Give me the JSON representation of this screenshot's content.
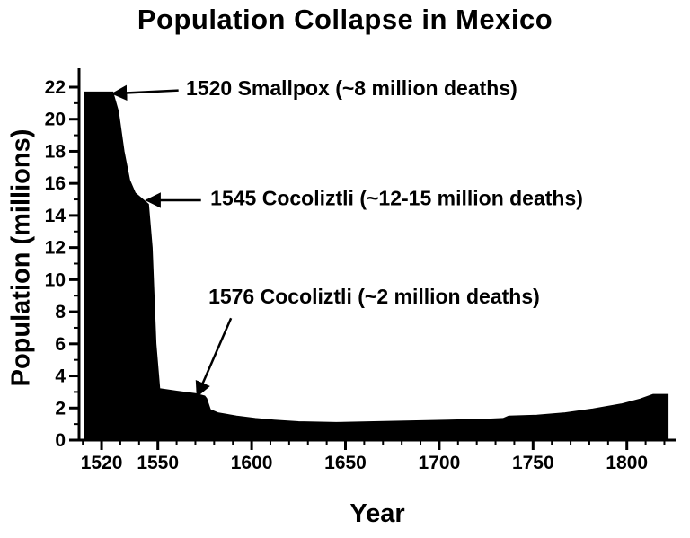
{
  "title": "Population Collapse in Mexico",
  "chart_data": {
    "type": "area",
    "title": "Population Collapse in Mexico",
    "xlabel": "Year",
    "ylabel": "Population (millions)",
    "xlim": [
      1508,
      1826
    ],
    "ylim": [
      0,
      22
    ],
    "grid": false,
    "legend": "none",
    "fill_color": "#000000",
    "axis_color": "#000000",
    "xticks_major": [
      1520,
      1550,
      1600,
      1650,
      1700,
      1750,
      1800
    ],
    "xtick_minor_step": 10,
    "yticks_major": [
      0,
      2,
      4,
      6,
      8,
      10,
      12,
      14,
      16,
      18,
      20,
      22
    ],
    "ytick_minor_step": 1,
    "x": [
      1511,
      1526,
      1529,
      1532,
      1535,
      1538,
      1542,
      1545,
      1547,
      1549,
      1551,
      1560,
      1570,
      1575,
      1576,
      1578,
      1582,
      1592,
      1602,
      1612,
      1625,
      1645,
      1665,
      1685,
      1705,
      1725,
      1734,
      1737,
      1752,
      1767,
      1782,
      1797,
      1807,
      1814,
      1822
    ],
    "y": [
      21.7,
      21.7,
      20.5,
      18.0,
      16.2,
      15.4,
      15.0,
      14.7,
      12.0,
      6.0,
      3.2,
      3.05,
      2.9,
      2.75,
      2.6,
      1.9,
      1.7,
      1.5,
      1.35,
      1.25,
      1.15,
      1.1,
      1.15,
      1.2,
      1.25,
      1.3,
      1.35,
      1.5,
      1.55,
      1.7,
      1.95,
      2.25,
      2.55,
      2.85,
      2.85
    ],
    "annotations": [
      {
        "text": "1520  Smallpox (~8 million deaths)",
        "text_pos": {
          "year": 1565,
          "value": 21.5
        },
        "tail": {
          "year": 1561,
          "value": 21.8
        },
        "target": {
          "year": 1526,
          "value": 21.6
        }
      },
      {
        "text": "1545  Cocoliztli (~12-15 million deaths)",
        "text_pos": {
          "year": 1578,
          "value": 14.65
        },
        "tail": {
          "year": 1573,
          "value": 14.95
        },
        "target": {
          "year": 1544,
          "value": 14.95
        }
      },
      {
        "text": "1576  Cocoliztli (~2 million deaths)",
        "text_pos": {
          "year": 1577,
          "value": 8.5
        },
        "tail": {
          "year": 1589,
          "value": 7.6
        },
        "target": {
          "year": 1571,
          "value": 2.75
        }
      }
    ]
  }
}
